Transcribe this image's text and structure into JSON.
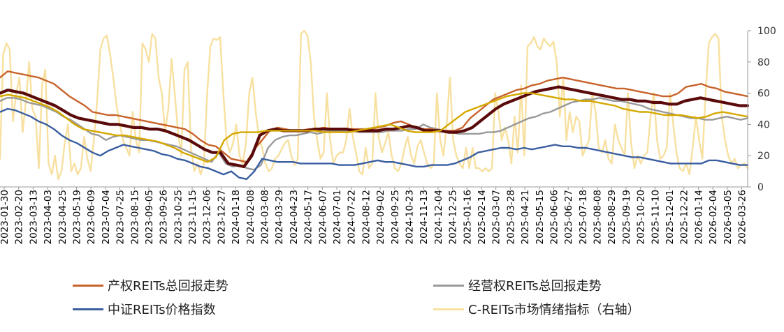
{
  "chart_data": {
    "type": "line",
    "y_right": {
      "min": 0,
      "max": 100,
      "ticks": [
        0,
        20,
        40,
        60,
        80,
        100
      ]
    },
    "x_ticks": [
      "2023-01-30",
      "2023-02-20",
      "2023-03-13",
      "2023-04-03",
      "2023-04-25",
      "2023-05-19",
      "2023-06-09",
      "2023-07-04",
      "2023-07-25",
      "2023-08-15",
      "2023-09-05",
      "2023-09-26",
      "2023-10-25",
      "2023-11-15",
      "2023-12-06",
      "2023-12-27",
      "2024-01-18",
      "2024-02-08",
      "2024-03-08",
      "2024-03-29",
      "2024-04-23",
      "2024-05-17",
      "2024-06-07",
      "2024-07-01",
      "2024-07-22",
      "2024-08-12",
      "2024-09-02",
      "2024-09-25",
      "2024-10-23",
      "2024-11-13",
      "2024-12-04",
      "2024-12-25",
      "2025-01-16",
      "2025-02-14",
      "2025-03-07",
      "2025-03-28",
      "2025-04-21",
      "2025-05-15",
      "2025-06-06",
      "2025-06-27",
      "2025-07-18",
      "2025-08-08",
      "2025-08-29",
      "2025-09-19",
      "2025-10-20",
      "2025-11-10",
      "2025-12-01",
      "2025-12-22",
      "2026-01-14",
      "2026-02-04",
      "2026-03-05",
      "2026-03-26"
    ],
    "series": [
      {
        "name": "C-REITs市场情绪指标（右轴）",
        "color": "#f7e0a0",
        "values": [
          18,
          85,
          92,
          88,
          42,
          60,
          70,
          35,
          55,
          80,
          50,
          45,
          12,
          65,
          75,
          15,
          8,
          20,
          5,
          10,
          28,
          40,
          10,
          15,
          8,
          12,
          32,
          18,
          10,
          30,
          55,
          88,
          95,
          97,
          85,
          70,
          52,
          40,
          30,
          25,
          20,
          48,
          30,
          22,
          92,
          88,
          80,
          98,
          95,
          70,
          60,
          35,
          50,
          82,
          60,
          35,
          20,
          75,
          80,
          25,
          10,
          15,
          8,
          15,
          60,
          90,
          95,
          94,
          96,
          60,
          30,
          22,
          28,
          40,
          20,
          15,
          28,
          60,
          70,
          48,
          32,
          25,
          15,
          10,
          12,
          18,
          20,
          24,
          28,
          30,
          20,
          14,
          18,
          98,
          100,
          97,
          80,
          45,
          30,
          18,
          22,
          60,
          30,
          15,
          20,
          22,
          22,
          30,
          50,
          32,
          22,
          10,
          8,
          25,
          12,
          15,
          60,
          32,
          22,
          28,
          35,
          20,
          12,
          10,
          15,
          25,
          32,
          20,
          15,
          26,
          30,
          22,
          15,
          12,
          14,
          60,
          30,
          20,
          40,
          70,
          30,
          20,
          15,
          12,
          25,
          12,
          25,
          12,
          12,
          10,
          12,
          10,
          12,
          60,
          48,
          30,
          38,
          30,
          15,
          45,
          22,
          65,
          20,
          90,
          92,
          96,
          90,
          88,
          95,
          92,
          90,
          93,
          80,
          45,
          70,
          30,
          48,
          35,
          45,
          42,
          20,
          25,
          30,
          60,
          48,
          25,
          22,
          30,
          18,
          15,
          40,
          30,
          25,
          20,
          60,
          28,
          12,
          20,
          15,
          20,
          22,
          45,
          60,
          30,
          18,
          20,
          25,
          60,
          40,
          22,
          12,
          10,
          15,
          8,
          25,
          45,
          30,
          18,
          60,
          92,
          96,
          98,
          95,
          45,
          30,
          20,
          15,
          18,
          12,
          14,
          15,
          12
        ]
      },
      {
        "name": "经营权REITs总回报走势",
        "color": "#9a9a9a",
        "values": [
          55,
          57,
          57,
          56,
          54,
          53,
          52,
          50,
          48,
          45,
          43,
          40,
          37,
          34,
          33,
          30,
          32,
          33,
          32,
          31,
          30,
          30,
          29,
          28,
          27,
          26,
          24,
          22,
          20,
          18,
          16,
          22,
          15,
          13,
          14,
          12,
          11,
          14,
          25,
          30,
          32,
          33,
          33,
          34,
          35,
          34,
          35,
          36,
          36,
          36,
          36,
          35,
          35,
          35,
          35,
          36,
          36,
          36,
          37,
          37,
          40,
          38,
          37,
          36,
          35,
          34,
          34,
          34,
          34,
          35,
          35,
          36,
          38,
          40,
          42,
          44,
          45,
          47,
          48,
          50,
          52,
          54,
          55,
          56,
          56,
          57,
          56,
          55,
          55,
          54,
          53,
          52,
          50,
          49,
          48,
          47,
          46,
          45,
          44,
          44,
          43,
          43,
          44,
          45,
          44,
          43,
          44
        ]
      },
      {
        "name": "产权REITs总回报走势",
        "color": "#c8632b",
        "values": [
          70,
          74,
          73,
          72,
          71,
          70,
          68,
          66,
          62,
          58,
          55,
          52,
          48,
          47,
          46,
          46,
          45,
          44,
          43,
          42,
          41,
          40,
          39,
          38,
          37,
          34,
          30,
          27,
          26,
          22,
          18,
          17,
          16,
          24,
          30,
          36,
          38,
          37,
          36,
          36,
          37,
          37,
          38,
          37,
          37,
          37,
          37,
          37,
          37,
          38,
          39,
          41,
          42,
          40,
          38,
          37,
          37,
          36,
          36,
          36,
          38,
          44,
          48,
          52,
          56,
          58,
          60,
          62,
          63,
          65,
          66,
          68,
          69,
          70,
          69,
          68,
          67,
          66,
          65,
          64,
          63,
          63,
          62,
          61,
          60,
          59,
          58,
          58,
          60,
          64,
          65,
          66,
          64,
          63,
          61,
          60,
          59,
          58
        ]
      },
      {
        "name": "dark-maroon-series",
        "color": "#5a0a0a",
        "values": [
          60,
          62,
          61,
          60,
          58,
          56,
          54,
          52,
          49,
          46,
          44,
          43,
          42,
          41,
          40,
          40,
          39,
          38,
          38,
          37,
          37,
          36,
          34,
          32,
          30,
          27,
          24,
          22,
          22,
          15,
          14,
          13,
          20,
          33,
          36,
          37,
          36,
          36,
          36,
          36,
          37,
          37,
          37,
          37,
          37,
          36,
          36,
          36,
          36,
          37,
          37,
          38,
          39,
          38,
          36,
          36,
          36,
          35,
          35,
          36,
          38,
          42,
          46,
          50,
          53,
          55,
          57,
          59,
          61,
          62,
          63,
          64,
          63,
          62,
          61,
          60,
          59,
          58,
          57,
          56,
          56,
          55,
          55,
          54,
          54,
          53,
          53,
          55,
          56,
          57,
          56,
          55,
          54,
          53,
          52,
          52
        ]
      },
      {
        "name": "gold-series",
        "color": "#d4a800",
        "values": [
          58,
          59,
          58,
          57,
          55,
          53,
          51,
          48,
          44,
          40,
          37,
          36,
          35,
          34,
          33,
          33,
          32,
          31,
          30,
          29,
          27,
          25,
          22,
          20,
          18,
          16,
          19,
          30,
          34,
          35,
          35,
          35,
          36,
          36,
          36,
          36,
          36,
          36,
          36,
          35,
          35,
          35,
          35,
          36,
          37,
          38,
          39,
          40,
          38,
          36,
          35,
          35,
          35,
          36,
          40,
          44,
          48,
          50,
          52,
          54,
          56,
          58,
          59,
          60,
          60,
          59,
          58,
          57,
          56,
          56,
          55,
          55,
          54,
          53,
          52,
          50,
          49,
          48,
          48,
          47,
          46,
          46,
          46,
          45,
          44,
          45,
          47,
          48,
          47,
          46,
          45
        ]
      },
      {
        "name": "中证REITs价格指数",
        "color": "#3a5ea0",
        "values": [
          48,
          50,
          49,
          47,
          45,
          42,
          40,
          37,
          33,
          30,
          28,
          25,
          22,
          20,
          23,
          25,
          27,
          26,
          25,
          24,
          23,
          21,
          20,
          18,
          17,
          15,
          13,
          12,
          10,
          8,
          10,
          6,
          5,
          10,
          18,
          17,
          16,
          16,
          16,
          15,
          15,
          15,
          15,
          15,
          14,
          14,
          14,
          15,
          16,
          17,
          16,
          16,
          15,
          14,
          13,
          13,
          14,
          14,
          14,
          15,
          17,
          19,
          22,
          23,
          24,
          25,
          25,
          24,
          25,
          24,
          25,
          26,
          27,
          26,
          26,
          25,
          25,
          24,
          23,
          22,
          21,
          20,
          19,
          19,
          18,
          17,
          16,
          15,
          15,
          15,
          15,
          15,
          17,
          17,
          16,
          15,
          14,
          14
        ]
      }
    ],
    "legend": [
      {
        "label": "产权REITs总回报走势",
        "color": "#c8632b"
      },
      {
        "label": "经营权REITs总回报走势",
        "color": "#9a9a9a"
      },
      {
        "label": "中证REITs价格指数",
        "color": "#3a5ea0"
      },
      {
        "label": "C-REITs市场情绪指标（右轴）",
        "color": "#f7e0a0"
      }
    ]
  }
}
